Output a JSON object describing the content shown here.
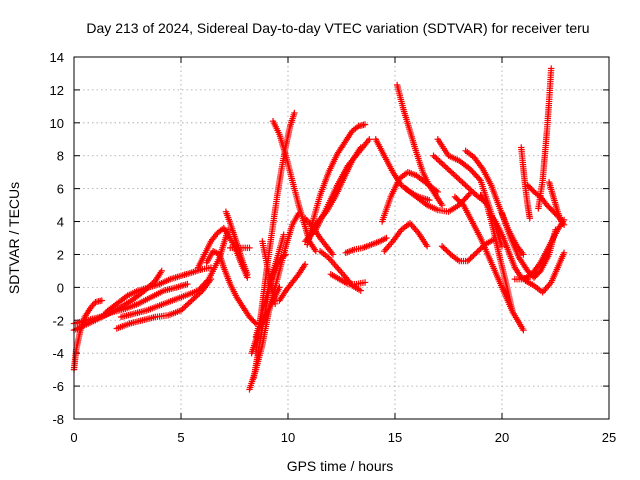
{
  "chart_data": {
    "type": "scatter",
    "title": "Day 213 of 2024, Sidereal Day-to-day VTEC variation (SDTVAR) for receiver teru",
    "xlabel": "GPS time / hours",
    "ylabel": "SDTVAR / TECUs",
    "xlim": [
      0,
      25
    ],
    "ylim": [
      -8,
      14
    ],
    "xticks": [
      0,
      5,
      10,
      15,
      20,
      25
    ],
    "yticks": [
      -8,
      -6,
      -4,
      -2,
      0,
      2,
      4,
      6,
      8,
      10,
      12,
      14
    ],
    "xtick_labels": [
      "0",
      "5",
      "10",
      "15",
      "20",
      "25"
    ],
    "ytick_labels": [
      "-8",
      "-6",
      "-4",
      "-2",
      "0",
      "2",
      "4",
      "6",
      "8",
      "10",
      "12",
      "14"
    ],
    "grid": true,
    "marker": "+",
    "color": "#ff0000",
    "series": [
      {
        "x": [
          0.0,
          0.1,
          0.3,
          0.5,
          0.8,
          1.0,
          1.3
        ],
        "y": [
          -5.0,
          -3.8,
          -2.6,
          -1.8,
          -1.2,
          -0.9,
          -0.8
        ]
      },
      {
        "x": [
          0.0,
          0.5,
          1.0,
          1.6,
          2.2,
          2.8,
          3.3,
          3.8,
          4.1
        ],
        "y": [
          -2.6,
          -2.3,
          -2.0,
          -1.6,
          -1.2,
          -0.7,
          -0.2,
          0.4,
          1.0
        ]
      },
      {
        "x": [
          0.0,
          0.6,
          1.2,
          1.8,
          2.4,
          3.0,
          3.6,
          4.2,
          4.8,
          5.3
        ],
        "y": [
          -2.2,
          -2.0,
          -1.8,
          -1.5,
          -1.3,
          -1.0,
          -0.6,
          -0.2,
          0.0,
          0.2
        ]
      },
      {
        "x": [
          1.5,
          2.0,
          2.5,
          3.0,
          3.5,
          4.0,
          4.5,
          5.0,
          5.5,
          6.0,
          6.4
        ],
        "y": [
          -1.5,
          -1.0,
          -0.5,
          -0.2,
          0.0,
          0.2,
          0.5,
          0.7,
          0.9,
          1.1,
          1.2
        ]
      },
      {
        "x": [
          2.0,
          2.6,
          3.2,
          3.8,
          4.4,
          5.0,
          5.5,
          6.0,
          6.4
        ],
        "y": [
          -2.5,
          -2.2,
          -2.0,
          -1.8,
          -1.7,
          -1.4,
          -0.8,
          -0.2,
          0.5
        ]
      },
      {
        "x": [
          2.2,
          2.8,
          3.4,
          4.0,
          4.6,
          5.2,
          5.8,
          6.3,
          6.8,
          7.2
        ],
        "y": [
          -1.8,
          -1.6,
          -1.4,
          -1.1,
          -0.8,
          -0.5,
          -0.2,
          0.5,
          1.8,
          3.5
        ]
      },
      {
        "x": [
          5.8,
          6.1,
          6.4,
          6.7,
          7.0,
          7.2,
          7.5,
          7.8,
          8.1
        ],
        "y": [
          1.2,
          2.0,
          2.8,
          3.3,
          3.6,
          3.2,
          2.5,
          1.5,
          0.6
        ]
      },
      {
        "x": [
          6.2,
          6.5,
          6.8,
          7.0,
          7.3,
          7.6,
          7.9,
          8.2,
          8.5
        ],
        "y": [
          1.5,
          2.2,
          2.0,
          1.2,
          0.2,
          -0.6,
          -1.2,
          -1.8,
          -2.2
        ]
      },
      {
        "x": [
          7.1,
          7.3,
          7.5,
          7.7,
          7.9,
          8.1
        ],
        "y": [
          4.6,
          3.9,
          3.1,
          2.3,
          1.5,
          0.8
        ]
      },
      {
        "x": [
          7.3,
          7.6,
          7.9,
          8.2
        ],
        "y": [
          2.4,
          2.4,
          2.4,
          2.4
        ]
      },
      {
        "x": [
          8.2,
          8.5,
          8.8,
          9.1,
          9.5,
          9.9,
          10.2,
          10.5
        ],
        "y": [
          -6.2,
          -5.0,
          -3.5,
          -1.5,
          0.5,
          2.5,
          3.8,
          4.5
        ]
      },
      {
        "x": [
          8.3,
          8.5,
          8.7,
          9.0,
          9.3,
          9.6
        ],
        "y": [
          -4.0,
          -3.2,
          -2.4,
          -1.6,
          -0.8,
          0.0
        ]
      },
      {
        "x": [
          8.4,
          8.6,
          8.8,
          9.0,
          9.2,
          9.5,
          9.8
        ],
        "y": [
          -5.5,
          -4.0,
          -2.5,
          -1.0,
          0.5,
          1.8,
          3.2
        ]
      },
      {
        "x": [
          8.5,
          8.7,
          8.9,
          9.1,
          9.3,
          9.5,
          9.7,
          9.9,
          10.1,
          10.3
        ],
        "y": [
          -4.0,
          -2.0,
          0.0,
          2.0,
          3.8,
          5.6,
          7.2,
          8.6,
          9.8,
          10.6
        ]
      },
      {
        "x": [
          8.5,
          8.7,
          8.9,
          9.1,
          9.3,
          9.5,
          9.7,
          9.9
        ],
        "y": [
          -3.0,
          -2.0,
          -1.0,
          0.0,
          0.8,
          1.4,
          1.8,
          2.0
        ]
      },
      {
        "x": [
          8.8,
          9.0,
          9.2,
          9.4
        ],
        "y": [
          2.8,
          1.5,
          0.2,
          -1.0
        ]
      },
      {
        "x": [
          9.3,
          9.6,
          9.9,
          10.2,
          10.5,
          10.8,
          11.0,
          11.3
        ],
        "y": [
          10.1,
          9.3,
          8.0,
          6.5,
          5.0,
          3.7,
          2.8,
          2.2
        ]
      },
      {
        "x": [
          9.6,
          9.9,
          10.2,
          10.5,
          10.8
        ],
        "y": [
          -0.8,
          -0.2,
          0.3,
          0.8,
          1.4
        ]
      },
      {
        "x": [
          10.9,
          11.2,
          11.5,
          11.9,
          12.3,
          12.7,
          13.0,
          13.3,
          13.6
        ],
        "y": [
          2.6,
          4.2,
          5.6,
          7.0,
          8.1,
          8.9,
          9.5,
          9.8,
          9.9
        ]
      },
      {
        "x": [
          10.8,
          11.3,
          11.8,
          12.3,
          12.8,
          13.3,
          13.8
        ],
        "y": [
          2.8,
          3.5,
          4.8,
          6.2,
          7.4,
          8.2,
          9.0
        ]
      },
      {
        "x": [
          11.0,
          11.4,
          11.8,
          12.2,
          12.6,
          13.0,
          13.4
        ],
        "y": [
          3.0,
          4.0,
          4.6,
          5.5,
          6.6,
          7.7,
          8.5
        ]
      },
      {
        "x": [
          10.8,
          11.2,
          11.5,
          11.8,
          12.1
        ],
        "y": [
          4.2,
          3.6,
          3.0,
          2.5,
          2.0
        ]
      },
      {
        "x": [
          11.5,
          11.9,
          12.3,
          12.7,
          13.0,
          13.4
        ],
        "y": [
          2.2,
          1.8,
          1.2,
          0.6,
          0.1,
          -0.2
        ]
      },
      {
        "x": [
          12.0,
          12.4,
          12.8,
          13.2,
          13.6
        ],
        "y": [
          0.8,
          0.5,
          0.2,
          0.2,
          0.3
        ]
      },
      {
        "x": [
          12.7,
          13.1,
          13.5,
          13.9,
          14.3,
          14.6
        ],
        "y": [
          2.1,
          2.3,
          2.4,
          2.6,
          2.8,
          3.0
        ]
      },
      {
        "x": [
          14.1,
          14.5,
          14.9,
          15.3,
          15.7,
          16.1,
          16.6
        ],
        "y": [
          9.0,
          8.0,
          7.0,
          6.2,
          5.8,
          5.5,
          5.3
        ]
      },
      {
        "x": [
          14.4,
          14.8,
          15.2,
          15.6,
          16.0,
          16.5,
          17.0
        ],
        "y": [
          4.0,
          5.5,
          6.6,
          7.0,
          6.8,
          6.3,
          5.8
        ]
      },
      {
        "x": [
          14.5,
          14.9,
          15.3,
          15.7,
          16.1,
          16.5
        ],
        "y": [
          2.2,
          2.8,
          3.5,
          3.9,
          3.3,
          2.5
        ]
      },
      {
        "x": [
          15.1,
          15.4,
          15.7,
          16.0,
          16.3,
          16.6,
          16.9,
          17.2
        ],
        "y": [
          12.3,
          10.8,
          9.5,
          8.2,
          7.0,
          6.2,
          5.6,
          5.0
        ]
      },
      {
        "x": [
          15.5,
          16.0,
          16.5,
          17.0,
          17.5,
          18.0,
          18.5
        ],
        "y": [
          6.0,
          5.5,
          5.0,
          4.7,
          4.6,
          5.0,
          5.7
        ]
      },
      {
        "x": [
          16.8,
          17.3,
          17.8,
          18.3,
          18.8,
          19.2
        ],
        "y": [
          8.0,
          7.4,
          6.8,
          6.2,
          5.6,
          5.2
        ]
      },
      {
        "x": [
          17.0,
          17.5,
          18.0,
          18.5,
          19.0,
          19.5,
          20.0
        ],
        "y": [
          9.0,
          8.0,
          7.7,
          7.2,
          6.5,
          4.5,
          2.5
        ]
      },
      {
        "x": [
          17.8,
          18.2,
          18.6,
          19.0,
          19.5,
          20.0,
          20.5,
          21.0
        ],
        "y": [
          5.5,
          5.0,
          4.0,
          3.0,
          1.5,
          0.0,
          -1.5,
          -2.6
        ]
      },
      {
        "x": [
          17.2,
          17.6,
          18.0,
          18.4,
          18.8,
          19.2,
          19.6
        ],
        "y": [
          2.5,
          2.0,
          1.6,
          1.6,
          2.1,
          2.6,
          2.9
        ]
      },
      {
        "x": [
          18.3,
          18.7,
          19.1,
          19.5,
          19.9,
          20.3,
          20.7,
          21.0
        ],
        "y": [
          8.3,
          7.9,
          7.2,
          6.2,
          4.8,
          3.5,
          2.5,
          2.0
        ]
      },
      {
        "x": [
          19.0,
          19.3,
          19.6,
          19.9,
          20.2,
          20.5
        ],
        "y": [
          5.6,
          5.0,
          3.5,
          1.8,
          0.2,
          -1.5
        ]
      },
      {
        "x": [
          19.4,
          19.7,
          20.0,
          20.3,
          20.6,
          20.9,
          21.2
        ],
        "y": [
          4.5,
          4.0,
          3.2,
          2.2,
          1.2,
          0.6,
          0.5
        ]
      },
      {
        "x": [
          20.0,
          20.4,
          20.8,
          21.2,
          21.5,
          21.8,
          22.2,
          22.5
        ],
        "y": [
          4.5,
          3.0,
          1.8,
          1.0,
          0.6,
          1.0,
          2.0,
          3.5
        ]
      },
      {
        "x": [
          20.6,
          21.0,
          21.4,
          21.8,
          22.2,
          22.6,
          22.9
        ],
        "y": [
          0.5,
          0.5,
          0.8,
          1.5,
          2.5,
          3.5,
          4.1
        ]
      },
      {
        "x": [
          20.9,
          21.0,
          21.1,
          21.2,
          21.3
        ],
        "y": [
          8.5,
          7.2,
          6.0,
          5.0,
          4.2
        ]
      },
      {
        "x": [
          21.2,
          21.5,
          21.8,
          22.1,
          22.4,
          22.7,
          22.9
        ],
        "y": [
          6.2,
          5.8,
          5.5,
          5.0,
          4.6,
          4.2,
          3.8
        ]
      },
      {
        "x": [
          21.7,
          21.9,
          22.0,
          22.1,
          22.2,
          22.3
        ],
        "y": [
          4.8,
          6.5,
          8.0,
          9.5,
          11.3,
          13.3
        ]
      },
      {
        "x": [
          22.2,
          22.4,
          22.6,
          22.8
        ],
        "y": [
          6.4,
          5.5,
          4.6,
          3.9
        ]
      },
      {
        "x": [
          21.1,
          21.5,
          21.9,
          22.3,
          22.6,
          22.9
        ],
        "y": [
          0.4,
          0.1,
          -0.3,
          0.3,
          1.2,
          2.1
        ]
      }
    ]
  }
}
